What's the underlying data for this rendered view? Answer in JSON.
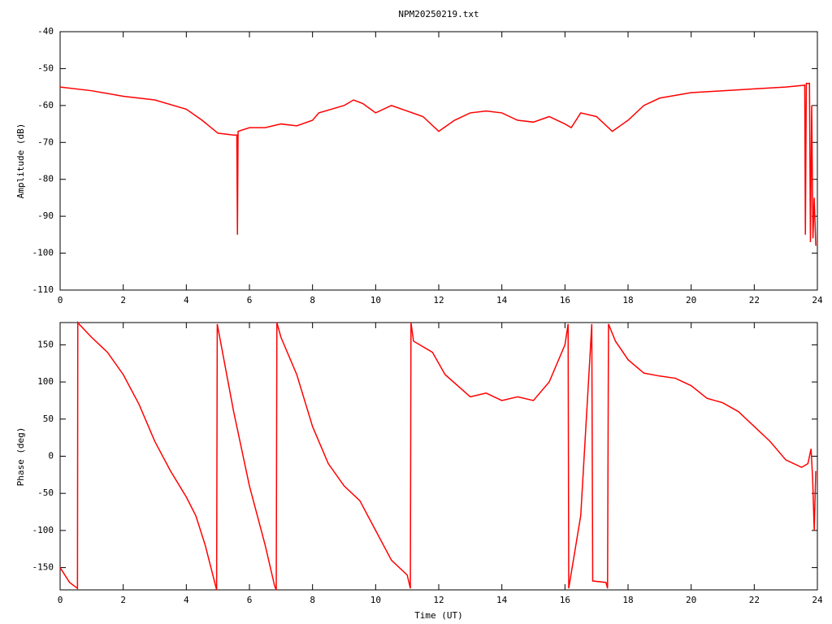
{
  "chart_data": [
    {
      "type": "line",
      "title": "NPM20250219.txt",
      "ylabel": "Amplitude (dB)",
      "xlim": [
        0,
        24
      ],
      "xticks": [
        0,
        2,
        4,
        6,
        8,
        10,
        12,
        14,
        16,
        18,
        20,
        22,
        24
      ],
      "ylim": [
        -110,
        -40
      ],
      "yticks": [
        -110,
        -100,
        -90,
        -80,
        -70,
        -60,
        -50,
        -40
      ],
      "x": [
        0,
        1,
        2,
        3,
        4,
        4.5,
        5,
        5.5,
        5.6,
        5.62,
        5.64,
        6,
        6.5,
        7,
        7.5,
        8,
        8.2,
        9,
        9.3,
        9.6,
        10,
        10.5,
        11,
        11.5,
        12,
        12.5,
        13,
        13.5,
        14,
        14.5,
        15,
        15.5,
        16,
        16.2,
        16.5,
        17,
        17.5,
        18,
        18.5,
        19,
        20,
        21,
        22,
        23,
        23.6,
        23.62,
        23.65,
        23.75,
        23.78,
        23.82,
        23.86,
        23.9,
        23.95
      ],
      "series": [
        {
          "color": "#ff0000",
          "values": [
            -55,
            -56,
            -57.5,
            -58.5,
            -61,
            -64,
            -67.5,
            -68,
            -68,
            -95,
            -67,
            -66,
            -66,
            -65,
            -65.5,
            -64,
            -62,
            -60,
            -58.5,
            -59.5,
            -62,
            -60,
            -61.5,
            -63,
            -67,
            -64,
            -62,
            -61.5,
            -62,
            -64,
            -64.5,
            -63,
            -65,
            -66,
            -62,
            -63,
            -67,
            -64,
            -60,
            -58,
            -56.5,
            -56,
            -55.5,
            -55,
            -54.5,
            -95,
            -54,
            -54,
            -97,
            -60,
            -96,
            -85,
            -98
          ]
        }
      ]
    },
    {
      "type": "line",
      "xlabel": "Time (UT)",
      "ylabel": "Phase (deg)",
      "xlim": [
        0,
        24
      ],
      "xticks": [
        0,
        2,
        4,
        6,
        8,
        10,
        12,
        14,
        16,
        18,
        20,
        22,
        24
      ],
      "ylim": [
        -180,
        180
      ],
      "yticks": [
        -150,
        -100,
        -50,
        0,
        50,
        100,
        150
      ],
      "x": [
        0,
        0.3,
        0.55,
        0.56,
        0.6,
        1,
        1.5,
        2,
        2.5,
        3,
        3.5,
        4,
        4.3,
        4.6,
        4.9,
        4.96,
        4.98,
        5.5,
        5.7,
        6,
        6.5,
        6.8,
        6.85,
        6.87,
        7,
        7.5,
        8,
        8.5,
        9,
        9.5,
        10,
        10.5,
        11,
        11.1,
        11.12,
        11.2,
        11.8,
        12.2,
        13,
        13.5,
        14,
        14.5,
        15,
        15.5,
        16,
        16.1,
        16.12,
        16.5,
        16.8,
        16.85,
        16.88,
        17.3,
        17.35,
        17.38,
        17.6,
        18,
        18.5,
        19,
        19.5,
        20,
        20.5,
        21,
        21.5,
        22,
        22.5,
        23,
        23.5,
        23.7,
        23.8,
        23.85,
        23.9,
        23.95
      ],
      "series": [
        {
          "color": "#ff0000",
          "values": [
            -150,
            -170,
            -178,
            180,
            178,
            160,
            140,
            110,
            70,
            20,
            -20,
            -55,
            -80,
            -120,
            -170,
            -180,
            178,
            60,
            20,
            -40,
            -120,
            -175,
            -180,
            180,
            160,
            110,
            40,
            -10,
            -40,
            -60,
            -100,
            -140,
            -160,
            -178,
            180,
            155,
            140,
            110,
            80,
            85,
            75,
            80,
            75,
            100,
            150,
            178,
            -178,
            -80,
            140,
            178,
            -168,
            -170,
            -178,
            178,
            155,
            130,
            112,
            108,
            105,
            95,
            78,
            72,
            60,
            40,
            20,
            -5,
            -15,
            -10,
            10,
            -30,
            -100,
            -20
          ]
        }
      ]
    }
  ]
}
